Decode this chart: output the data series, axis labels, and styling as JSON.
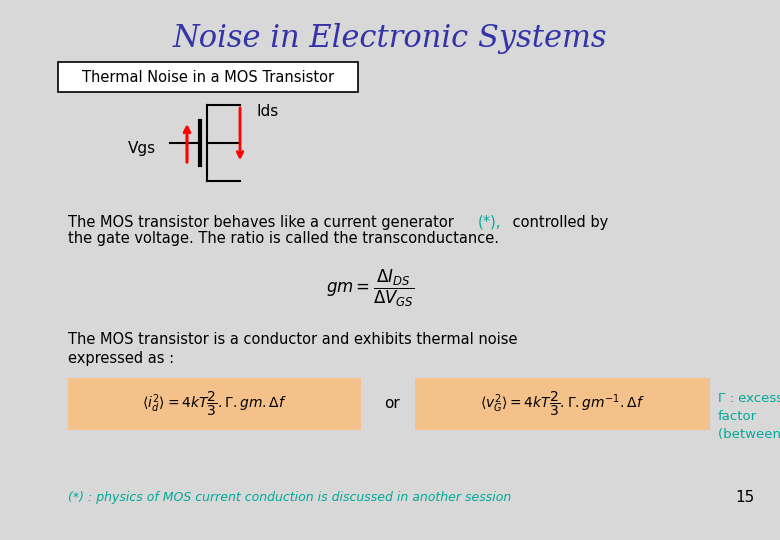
{
  "title": "Noise in Electronic Systems",
  "title_color": "#3333aa",
  "title_fontsize": 22,
  "bg_color": "#d8d8d8",
  "subtitle_box_text": "Thermal Noise in a MOS Transistor",
  "subtitle_box_color": "#ffffff",
  "subtitle_box_border": "#000000",
  "vgs_label": "Vgs",
  "ids_label": "Ids",
  "formula_bg": "#f5c18a",
  "gamma_color": "#00aa99",
  "footnote_text": "(*) : physics of MOS current conduction is discussed in another session",
  "footnote_color": "#00aa99",
  "page_number": "15",
  "body_color": "#000000",
  "body_fontsize": 11
}
